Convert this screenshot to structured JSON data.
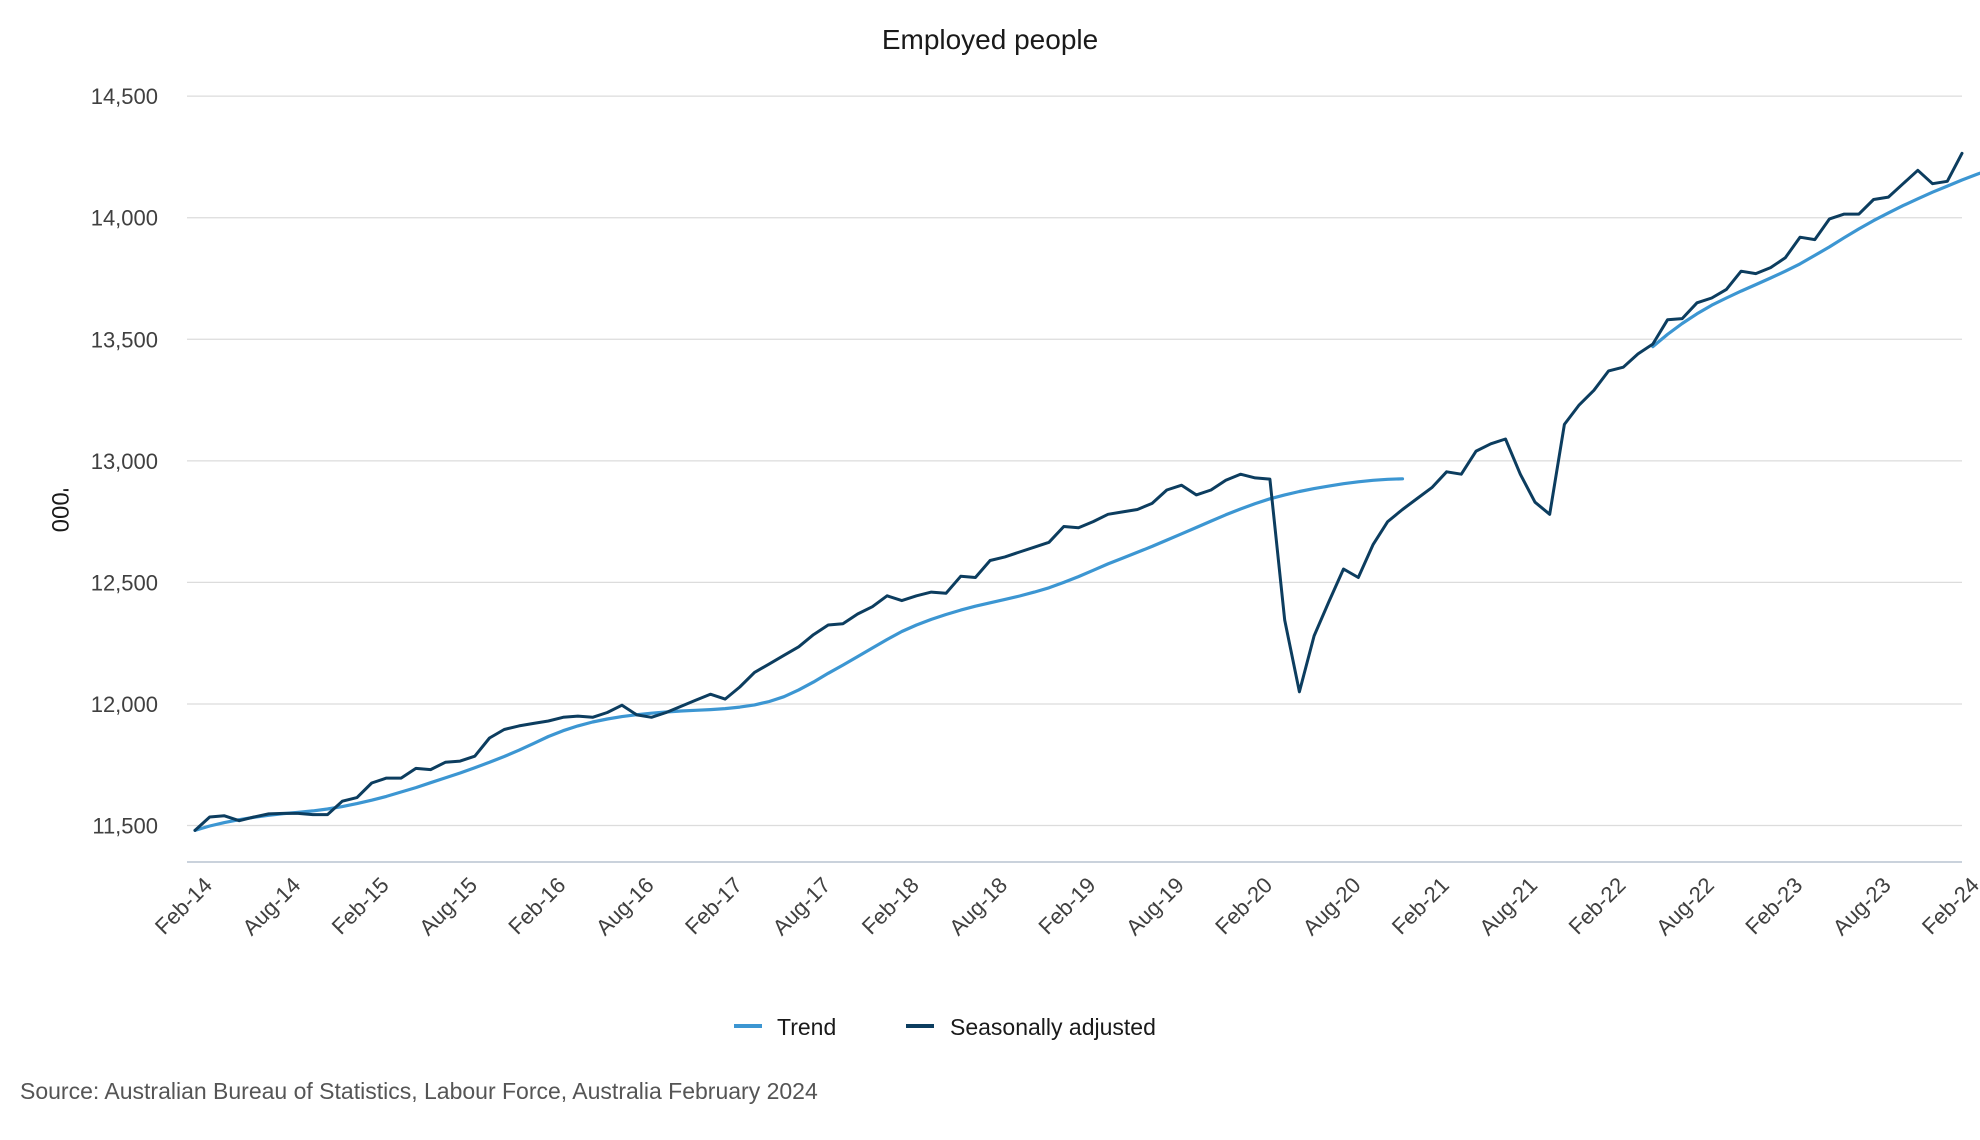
{
  "chart_data": {
    "type": "line",
    "title": "Employed people",
    "ylabel": "'000",
    "xlabel": "",
    "ylim": [
      11350,
      14550
    ],
    "y_ticks": [
      11500,
      12000,
      12500,
      13000,
      13500,
      14000,
      14500
    ],
    "y_tick_labels": [
      "11,500",
      "12,000",
      "12,500",
      "13,000",
      "13,500",
      "14,000",
      "14,500"
    ],
    "x_start": "Feb-14",
    "x_end": "Feb-24",
    "x_tick_labels": [
      "Feb-14",
      "Aug-14",
      "Feb-15",
      "Aug-15",
      "Feb-16",
      "Aug-16",
      "Feb-17",
      "Aug-17",
      "Feb-18",
      "Aug-18",
      "Feb-19",
      "Aug-19",
      "Feb-20",
      "Aug-20",
      "Feb-21",
      "Aug-21",
      "Feb-22",
      "Aug-22",
      "Feb-23",
      "Aug-23",
      "Feb-24"
    ],
    "grid": true,
    "legend_position": "bottom-center",
    "series": [
      {
        "name": "Trend",
        "color": "#3c96d2",
        "segments": [
          {
            "start": "Feb-14",
            "values": [
              11480,
              11498,
              11512,
              11524,
              11534,
              11542,
              11549,
              11554,
              11560,
              11568,
              11578,
              11590,
              11604,
              11620,
              11638,
              11656,
              11676,
              11696,
              11716,
              11738,
              11760,
              11784,
              11810,
              11838,
              11866,
              11890,
              11910,
              11926,
              11938,
              11948,
              11956,
              11962,
              11967,
              11971,
              11974,
              11977,
              11981,
              11987,
              11996,
              12010,
              12030,
              12058,
              12090,
              12126,
              12160,
              12195,
              12230,
              12265,
              12298,
              12325,
              12348,
              12368,
              12386,
              12402,
              12416,
              12430,
              12444,
              12460,
              12478,
              12500,
              12524,
              12550,
              12576,
              12600,
              12624,
              12648,
              12674,
              12700,
              12726,
              12752,
              12778,
              12802,
              12824,
              12844,
              12860,
              12874,
              12886,
              12896,
              12906,
              12914,
              12920,
              12924,
              12926
            ]
          },
          {
            "start": "May-22",
            "values": [
              13470,
              13520,
              13565,
              13605,
              13640,
              13670,
              13698,
              13725,
              13752,
              13780,
              13810,
              13845,
              13880,
              13918,
              13954,
              13988,
              14020,
              14050,
              14078,
              14105,
              14130,
              14155,
              14178,
              14200,
              14220,
              14240
            ]
          }
        ]
      },
      {
        "name": "Seasonally adjusted",
        "color": "#0c3d5f",
        "segments": [
          {
            "start": "Feb-14",
            "values": [
              11480,
              11535,
              11540,
              11520,
              11535,
              11548,
              11550,
              11550,
              11545,
              11545,
              11600,
              11615,
              11675,
              11695,
              11695,
              11735,
              11730,
              11760,
              11765,
              11785,
              11860,
              11895,
              11910,
              11920,
              11930,
              11945,
              11950,
              11945,
              11965,
              11995,
              11955,
              11945,
              11965,
              11990,
              12015,
              12040,
              12020,
              12070,
              12130,
              12165,
              12200,
              12235,
              12285,
              12325,
              12330,
              12370,
              12400,
              12445,
              12425,
              12445,
              12460,
              12455,
              12525,
              12520,
              12590,
              12605,
              12625,
              12645,
              12665,
              12730,
              12725,
              12750,
              12780,
              12790,
              12800,
              12825,
              12880,
              12900,
              12860,
              12880,
              12920,
              12945,
              12930,
              12925,
              12345,
              12050,
              12280,
              12420,
              12555,
              12520,
              12655,
              12750,
              12800,
              12845,
              12890,
              12955,
              12945,
              13040,
              13070,
              13090,
              12945,
              12830,
              12780,
              13150,
              13230,
              13290,
              13370,
              13385,
              13440,
              13480,
              13580,
              13585,
              13650,
              13670,
              13705,
              13780,
              13770,
              13795,
              13835,
              13920,
              13910,
              13995,
              14015,
              14015,
              14075,
              14085,
              14140,
              14195,
              14140,
              14150,
              14265
            ]
          }
        ]
      }
    ],
    "source": "Source: Australian Bureau of Statistics, Labour Force, Australia February 2024"
  }
}
